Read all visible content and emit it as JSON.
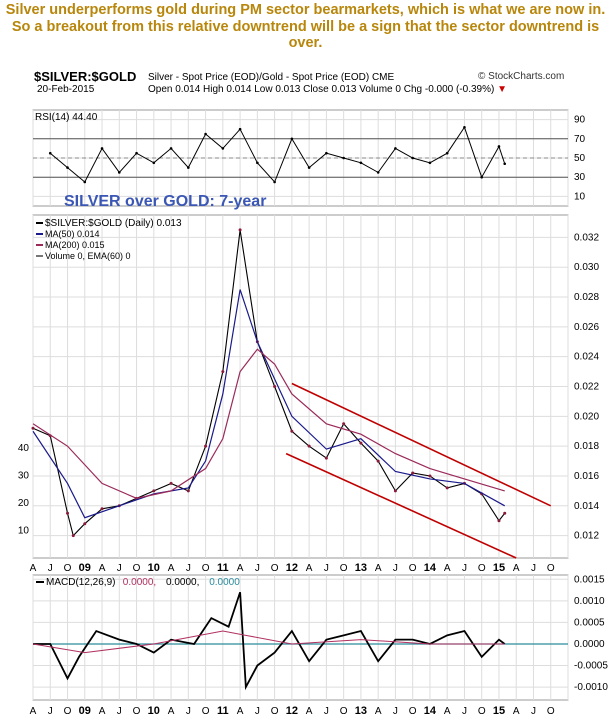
{
  "headline": "Silver underperforms gold during PM sector bearmarkets, which is what we are now in. So a breakout from this relative downtrend will be a sign that the sector downtrend is over.",
  "header": {
    "symbol": "$SILVER:$GOLD",
    "description": "Silver - Spot Price (EOD)/Gold - Spot Price (EOD) CME",
    "brand": "© StockCharts.com",
    "date": "20-Feb-2015",
    "quote": "Open 0.014  High 0.014  Low 0.013  Close 0.013  Volume 0  Chg -0.000 (-0.39%)",
    "chg_arrow": "▼"
  },
  "colors": {
    "price": "#000000",
    "price_candles": "#8b1a3a",
    "ma50": "#1a1a8c",
    "ma200": "#9b2a5a",
    "channel": "#c00000",
    "rsi": "#000000",
    "macd": "#000000",
    "signal": "#b03060",
    "histogram": "#2a8c9c",
    "annotation": "#3b57b5",
    "headline": "#b8860b"
  },
  "chart_data": [
    {
      "type": "line",
      "panel": "rsi",
      "legend": [
        "RSI(14) 44.40"
      ],
      "ylim": [
        0,
        100
      ],
      "yticks": [
        10,
        30,
        50,
        70,
        90
      ],
      "reference_lines": [
        30,
        70
      ],
      "series": [
        {
          "name": "RSI(14)",
          "x": [
            "2008-07",
            "2008-10",
            "2009-01",
            "2009-04",
            "2009-07",
            "2009-10",
            "2010-01",
            "2010-04",
            "2010-07",
            "2010-10",
            "2011-01",
            "2011-04",
            "2011-07",
            "2011-10",
            "2012-01",
            "2012-04",
            "2012-07",
            "2012-10",
            "2013-01",
            "2013-04",
            "2013-07",
            "2013-10",
            "2014-01",
            "2014-04",
            "2014-07",
            "2014-10",
            "2015-01",
            "2015-02"
          ],
          "values": [
            55,
            40,
            25,
            60,
            35,
            55,
            45,
            60,
            40,
            75,
            60,
            80,
            45,
            25,
            70,
            40,
            55,
            50,
            45,
            35,
            60,
            50,
            45,
            55,
            82,
            30,
            62,
            44
          ]
        }
      ]
    },
    {
      "type": "line",
      "panel": "price",
      "legend": [
        "$SILVER:$GOLD (Daily) 0.013",
        "MA(50) 0.014",
        "MA(200) 0.015",
        "Volume 0, EMA(60) 0"
      ],
      "annotation": "SILVER over GOLD: 7-year",
      "x_ticks": [
        "A",
        "J",
        "O",
        "09",
        "A",
        "J",
        "O",
        "10",
        "A",
        "J",
        "O",
        "11",
        "A",
        "J",
        "O",
        "12",
        "A",
        "J",
        "O",
        "13",
        "A",
        "J",
        "O",
        "14",
        "A",
        "J",
        "O",
        "15",
        "A",
        "J",
        "O"
      ],
      "yticks": [
        0.012,
        0.014,
        0.016,
        0.018,
        0.02,
        0.022,
        0.024,
        0.026,
        0.028,
        0.03,
        0.032
      ],
      "ylim": [
        0.0105,
        0.0335
      ],
      "volume_ticks": [
        10,
        20,
        30,
        40
      ],
      "series": [
        {
          "name": "$SILVER:$GOLD",
          "x": [
            "2008-04",
            "2008-07",
            "2008-10",
            "2008-11",
            "2009-01",
            "2009-04",
            "2009-07",
            "2009-10",
            "2010-01",
            "2010-04",
            "2010-07",
            "2010-10",
            "2011-01",
            "2011-04",
            "2011-07",
            "2011-10",
            "2012-01",
            "2012-04",
            "2012-07",
            "2012-10",
            "2013-01",
            "2013-04",
            "2013-07",
            "2013-10",
            "2014-01",
            "2014-04",
            "2014-07",
            "2014-10",
            "2015-01",
            "2015-02"
          ],
          "values": [
            0.0192,
            0.0187,
            0.0135,
            0.012,
            0.0128,
            0.0138,
            0.014,
            0.0145,
            0.015,
            0.0155,
            0.015,
            0.018,
            0.023,
            0.0325,
            0.025,
            0.022,
            0.019,
            0.018,
            0.0172,
            0.0195,
            0.0182,
            0.017,
            0.015,
            0.0162,
            0.016,
            0.0152,
            0.0155,
            0.0148,
            0.013,
            0.0135
          ]
        },
        {
          "name": "MA(50)",
          "x": [
            "2008-04",
            "2008-10",
            "2009-01",
            "2009-07",
            "2010-01",
            "2010-07",
            "2010-10",
            "2011-01",
            "2011-04",
            "2011-07",
            "2011-10",
            "2012-01",
            "2012-07",
            "2013-01",
            "2013-07",
            "2014-01",
            "2014-07",
            "2015-02"
          ],
          "values": [
            0.019,
            0.0155,
            0.0132,
            0.014,
            0.0148,
            0.0152,
            0.017,
            0.0215,
            0.0285,
            0.025,
            0.0225,
            0.02,
            0.0178,
            0.0185,
            0.0163,
            0.0158,
            0.0155,
            0.014
          ]
        },
        {
          "name": "MA(200)",
          "x": [
            "2008-04",
            "2008-10",
            "2009-04",
            "2009-10",
            "2010-04",
            "2010-10",
            "2011-01",
            "2011-04",
            "2011-07",
            "2011-10",
            "2012-01",
            "2012-07",
            "2013-01",
            "2013-07",
            "2014-01",
            "2014-07",
            "2015-02"
          ],
          "values": [
            0.0195,
            0.018,
            0.0155,
            0.0145,
            0.015,
            0.0165,
            0.0185,
            0.023,
            0.0245,
            0.0235,
            0.0215,
            0.0195,
            0.0188,
            0.0175,
            0.0165,
            0.0158,
            0.015
          ]
        }
      ],
      "channel": {
        "upper": {
          "x": [
            "2012-01",
            "2015-10"
          ],
          "values": [
            0.0222,
            0.014
          ]
        },
        "lower": {
          "x": [
            "2011-12",
            "2015-04"
          ],
          "values": [
            0.0175,
            0.0105
          ]
        }
      }
    },
    {
      "type": "line",
      "panel": "macd",
      "legend": [
        "MACD(12,26,9)",
        "0.0000,",
        "0.0000,",
        "0.0000"
      ],
      "yticks": [
        -0.001,
        -0.0005,
        0.0,
        0.0005,
        0.001,
        0.0015
      ],
      "ytick_labels": [
        "-0.0010",
        "-0.0005",
        "0.0000",
        "0.0005",
        "0.0010",
        "0.0015"
      ],
      "ylim": [
        -0.0013,
        0.0016
      ],
      "x_ticks": [
        "A",
        "J",
        "O",
        "09",
        "A",
        "J",
        "O",
        "10",
        "A",
        "J",
        "O",
        "11",
        "A",
        "J",
        "O",
        "12",
        "A",
        "J",
        "O",
        "13",
        "A",
        "J",
        "O",
        "14",
        "A",
        "J",
        "O",
        "15",
        "A",
        "J",
        "O"
      ],
      "series": [
        {
          "name": "MACD",
          "x": [
            "2008-04",
            "2008-07",
            "2008-10",
            "2008-12",
            "2009-03",
            "2009-07",
            "2009-10",
            "2010-01",
            "2010-04",
            "2010-08",
            "2010-11",
            "2011-02",
            "2011-04",
            "2011-05",
            "2011-07",
            "2011-10",
            "2012-01",
            "2012-04",
            "2012-07",
            "2012-10",
            "2013-01",
            "2013-04",
            "2013-07",
            "2013-10",
            "2014-01",
            "2014-04",
            "2014-07",
            "2014-10",
            "2015-01",
            "2015-02"
          ],
          "values": [
            0.0,
            0.0,
            -0.0008,
            -0.0003,
            0.0003,
            0.0001,
            0.0,
            -0.0002,
            0.0001,
            0.0,
            0.0006,
            0.0004,
            0.0012,
            -0.001,
            -0.0005,
            -0.0002,
            0.0003,
            -0.0004,
            0.0001,
            0.0002,
            0.0003,
            -0.0004,
            0.0001,
            0.0001,
            0.0,
            0.0002,
            0.0003,
            -0.0003,
            0.0001,
            0.0
          ]
        },
        {
          "name": "Signal",
          "x": [
            "2008-04",
            "2009-01",
            "2010-01",
            "2011-01",
            "2011-05",
            "2012-01",
            "2013-01",
            "2014-01",
            "2015-02"
          ],
          "values": [
            0.0,
            -0.0002,
            0.0,
            0.0003,
            0.0002,
            0.0,
            0.0001,
            0.0,
            0.0
          ]
        }
      ]
    }
  ]
}
